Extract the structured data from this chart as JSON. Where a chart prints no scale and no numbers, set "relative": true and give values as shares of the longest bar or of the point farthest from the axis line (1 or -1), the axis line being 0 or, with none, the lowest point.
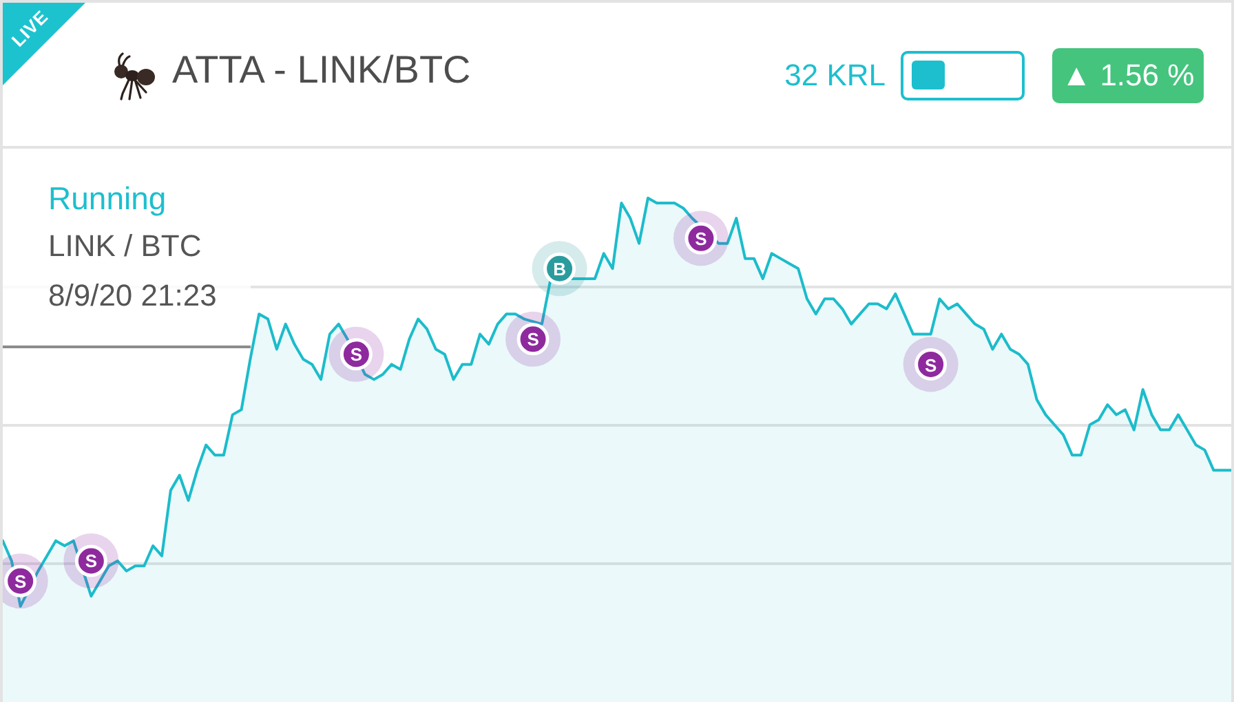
{
  "chart_data": {
    "type": "area",
    "title": "ATTA - LINK/BTC",
    "relative": true,
    "grid": "y",
    "annotations": [
      "LIVE",
      "32 KRL",
      "▲ 1.56 %",
      "Running",
      "LINK / BTC",
      "8/9/20 21:23",
      "S",
      "S",
      "S",
      "S",
      "B",
      "S",
      "S"
    ],
    "categories": [
      null,
      null,
      null,
      null,
      null,
      null,
      null,
      null,
      null,
      null,
      null,
      null,
      null,
      null,
      null,
      null,
      null,
      null,
      null,
      null,
      null,
      null,
      null,
      null,
      null,
      null,
      null,
      null,
      null,
      null,
      null,
      null,
      null,
      null,
      null,
      null,
      null,
      null,
      null,
      null,
      null,
      null,
      null,
      null,
      null,
      null,
      null,
      null,
      null,
      null,
      null,
      null,
      null,
      null,
      null,
      null,
      null,
      null,
      null,
      null,
      null,
      null,
      null,
      null,
      null,
      null,
      null,
      null,
      null,
      null,
      null,
      null,
      null,
      null,
      null,
      null,
      null,
      null,
      null,
      null,
      null,
      null,
      null,
      null,
      null,
      null,
      null,
      null,
      null,
      null,
      null,
      null,
      null,
      null,
      null,
      null,
      null,
      null,
      null,
      null,
      null,
      null,
      null,
      null,
      null,
      null,
      null,
      null,
      null,
      null,
      null,
      null,
      null,
      null,
      null,
      null,
      null,
      null,
      null,
      null,
      null,
      null,
      null,
      null,
      null,
      null,
      null,
      null,
      null,
      null,
      null,
      null,
      null,
      null,
      null,
      null,
      null,
      null,
      null,
      null
    ],
    "series": [
      {
        "color": "#1cbccb",
        "values": [
          0.32,
          0.28,
          0.19,
          null,
          0.26,
          0.29,
          0.32,
          0.31,
          0.32,
          null,
          0.21,
          0.24,
          0.27,
          0.28,
          0.26,
          0.27,
          0.27,
          0.31,
          0.29,
          0.42,
          0.45,
          0.4,
          0.46,
          0.51,
          0.49,
          0.49,
          0.57,
          0.58,
          0.68,
          0.77,
          0.76,
          0.7,
          0.75,
          0.71,
          0.68,
          0.67,
          0.64,
          0.73,
          0.75,
          0.72,
          null,
          0.65,
          0.64,
          0.65,
          0.67,
          0.66,
          0.72,
          0.76,
          0.74,
          0.7,
          0.69,
          0.64,
          0.67,
          0.67,
          0.73,
          0.71,
          0.75,
          0.77,
          0.77,
          0.76,
          null,
          0.75,
          0.84,
          null,
          null,
          0.84,
          0.84,
          0.84,
          0.89,
          0.86,
          0.99,
          0.96,
          0.91,
          1,
          0.99,
          0.99,
          0.99,
          0.98,
          0.96,
          null,
          null,
          0.91,
          0.91,
          0.96,
          0.88,
          0.88,
          0.84,
          0.89,
          0.88,
          0.87,
          0.86,
          0.8,
          0.77,
          0.8,
          0.8,
          0.78,
          0.75,
          0.77,
          0.79,
          0.79,
          0.78,
          0.81,
          0.77,
          0.73,
          0.73,
          0.73,
          0.8,
          0.78,
          0.79,
          0.77,
          0.75,
          0.74,
          0.7,
          0.73,
          0.7,
          0.69,
          0.67,
          0.6,
          0.57,
          0.55,
          0.53,
          0.49,
          0.49,
          0.55,
          0.56,
          0.59,
          0.57,
          0.58,
          0.54,
          0.62,
          0.57,
          0.54,
          0.54,
          0.57,
          0.54,
          0.51,
          0.5,
          0.46,
          0.46,
          0.46
        ]
      },
      {
        "type": "line",
        "marker": "circle",
        "color": "#8e2a9e",
        "values": [
          null,
          null,
          0.24,
          null,
          null,
          null,
          null,
          null,
          null,
          null,
          null,
          null,
          null,
          null,
          null,
          null,
          null,
          null,
          null,
          null,
          null,
          null,
          null,
          null,
          null,
          null,
          null,
          null,
          null,
          null,
          null,
          null,
          null,
          null,
          null,
          null,
          null,
          null,
          null,
          null,
          null,
          null,
          null,
          null,
          null,
          null,
          null,
          null,
          null,
          null,
          null,
          null,
          null,
          null,
          null,
          null,
          null,
          null,
          null,
          null,
          null,
          null,
          null,
          null,
          null,
          null,
          null,
          null,
          null,
          null,
          null,
          null,
          null,
          null,
          null,
          null,
          null,
          null,
          null,
          null,
          null,
          null,
          null,
          null,
          null,
          null,
          null,
          null,
          null,
          null,
          null,
          null,
          null,
          null,
          null,
          null,
          null,
          null,
          null,
          null,
          null,
          null,
          null,
          null,
          null,
          null,
          null,
          null,
          null,
          null,
          null,
          null,
          null,
          null,
          null,
          null,
          null,
          null,
          null,
          null,
          null,
          null,
          null,
          null,
          null,
          null,
          null,
          null,
          null,
          null,
          null,
          null,
          null,
          null,
          null,
          null,
          null,
          null,
          null,
          null
        ]
      },
      {
        "type": "line",
        "marker": "circle",
        "color": "#8e2a9e",
        "values": [
          null,
          null,
          null,
          null,
          null,
          null,
          null,
          null,
          null,
          null,
          0.28,
          null,
          null,
          null,
          null,
          null,
          null,
          null,
          null,
          null,
          null,
          null,
          null,
          null,
          null,
          null,
          null,
          null,
          null,
          null,
          null,
          null,
          null,
          null,
          null,
          null,
          null,
          null,
          null,
          null,
          null,
          null,
          null,
          null,
          null,
          null,
          null,
          null,
          null,
          null,
          null,
          null,
          null,
          null,
          null,
          null,
          null,
          null,
          null,
          null,
          null,
          null,
          null,
          null,
          null,
          null,
          null,
          null,
          null,
          null,
          null,
          null,
          null,
          null,
          null,
          null,
          null,
          null,
          null,
          null,
          null,
          null,
          null,
          null,
          null,
          null,
          null,
          null,
          null,
          null,
          null,
          null,
          null,
          null,
          null,
          null,
          null,
          null,
          null,
          null,
          null,
          null,
          null,
          null,
          null,
          null,
          null,
          null,
          null,
          null,
          null,
          null,
          null,
          null,
          null,
          null,
          null,
          null,
          null,
          null,
          null,
          null,
          null,
          null,
          null,
          null,
          null,
          null,
          null,
          null,
          null,
          null,
          null,
          null,
          null,
          null,
          null,
          null,
          null,
          null
        ]
      },
      {
        "type": "line",
        "marker": "circle",
        "color": "#8e2a9e",
        "values": [
          null,
          null,
          null,
          null,
          null,
          null,
          null,
          null,
          null,
          null,
          null,
          null,
          null,
          null,
          null,
          null,
          null,
          null,
          null,
          null,
          null,
          null,
          null,
          null,
          null,
          null,
          null,
          null,
          null,
          null,
          null,
          null,
          null,
          null,
          null,
          null,
          null,
          null,
          null,
          null,
          0.69,
          null,
          null,
          null,
          null,
          null,
          null,
          null,
          null,
          null,
          null,
          null,
          null,
          null,
          null,
          null,
          null,
          null,
          null,
          null,
          null,
          null,
          null,
          null,
          null,
          null,
          null,
          null,
          null,
          null,
          null,
          null,
          null,
          null,
          null,
          null,
          null,
          null,
          null,
          null,
          null,
          null,
          null,
          null,
          null,
          null,
          null,
          null,
          null,
          null,
          null,
          null,
          null,
          null,
          null,
          null,
          null,
          null,
          null,
          null,
          null,
          null,
          null,
          null,
          null,
          null,
          null,
          null,
          null,
          null,
          null,
          null,
          null,
          null,
          null,
          null,
          null,
          null,
          null,
          null,
          null,
          null,
          null,
          null,
          null,
          null,
          null,
          null,
          null,
          null,
          null,
          null,
          null,
          null,
          null,
          null,
          null,
          null,
          null,
          null
        ]
      },
      {
        "type": "line",
        "marker": "circle",
        "color": "#8e2a9e",
        "values": [
          null,
          null,
          null,
          null,
          null,
          null,
          null,
          null,
          null,
          null,
          null,
          null,
          null,
          null,
          null,
          null,
          null,
          null,
          null,
          null,
          null,
          null,
          null,
          null,
          null,
          null,
          null,
          null,
          null,
          null,
          null,
          null,
          null,
          null,
          null,
          null,
          null,
          null,
          null,
          null,
          null,
          null,
          null,
          null,
          null,
          null,
          null,
          null,
          null,
          null,
          null,
          null,
          null,
          null,
          null,
          null,
          null,
          null,
          null,
          null,
          0.72,
          null,
          null,
          null,
          null,
          null,
          null,
          null,
          null,
          null,
          null,
          null,
          null,
          null,
          null,
          null,
          null,
          null,
          null,
          null,
          null,
          null,
          null,
          null,
          null,
          null,
          null,
          null,
          null,
          null,
          null,
          null,
          null,
          null,
          null,
          null,
          null,
          null,
          null,
          null,
          null,
          null,
          null,
          null,
          null,
          null,
          null,
          null,
          null,
          null,
          null,
          null,
          null,
          null,
          null,
          null,
          null,
          null,
          null,
          null,
          null,
          null,
          null,
          null,
          null,
          null,
          null,
          null,
          null,
          null,
          null,
          null,
          null,
          null,
          null,
          null,
          null,
          null,
          null,
          null
        ]
      },
      {
        "type": "line",
        "marker": "circle",
        "color": "#2b9c9e",
        "values": [
          null,
          null,
          null,
          null,
          null,
          null,
          null,
          null,
          null,
          null,
          null,
          null,
          null,
          null,
          null,
          null,
          null,
          null,
          null,
          null,
          null,
          null,
          null,
          null,
          null,
          null,
          null,
          null,
          null,
          null,
          null,
          null,
          null,
          null,
          null,
          null,
          null,
          null,
          null,
          null,
          null,
          null,
          null,
          null,
          null,
          null,
          null,
          null,
          null,
          null,
          null,
          null,
          null,
          null,
          null,
          null,
          null,
          null,
          null,
          null,
          null,
          null,
          null,
          0.86,
          null,
          null,
          null,
          null,
          null,
          null,
          null,
          null,
          null,
          null,
          null,
          null,
          null,
          null,
          null,
          null,
          null,
          null,
          null,
          null,
          null,
          null,
          null,
          null,
          null,
          null,
          null,
          null,
          null,
          null,
          null,
          null,
          null,
          null,
          null,
          null,
          null,
          null,
          null,
          null,
          null,
          null,
          null,
          null,
          null,
          null,
          null,
          null,
          null,
          null,
          null,
          null,
          null,
          null,
          null,
          null,
          null,
          null,
          null,
          null,
          null,
          null,
          null,
          null,
          null,
          null,
          null,
          null,
          null,
          null,
          null,
          null,
          null,
          null,
          null,
          null
        ]
      },
      {
        "type": "line",
        "marker": "circle",
        "color": "#8e2a9e",
        "values": [
          null,
          null,
          null,
          null,
          null,
          null,
          null,
          null,
          null,
          null,
          null,
          null,
          null,
          null,
          null,
          null,
          null,
          null,
          null,
          null,
          null,
          null,
          null,
          null,
          null,
          null,
          null,
          null,
          null,
          null,
          null,
          null,
          null,
          null,
          null,
          null,
          null,
          null,
          null,
          null,
          null,
          null,
          null,
          null,
          null,
          null,
          null,
          null,
          null,
          null,
          null,
          null,
          null,
          null,
          null,
          null,
          null,
          null,
          null,
          null,
          null,
          null,
          null,
          null,
          null,
          null,
          null,
          null,
          null,
          null,
          null,
          null,
          null,
          null,
          null,
          null,
          null,
          null,
          null,
          0.92,
          null,
          null,
          null,
          null,
          null,
          null,
          null,
          null,
          null,
          null,
          null,
          null,
          null,
          null,
          null,
          null,
          null,
          null,
          null,
          null,
          null,
          null,
          null,
          null,
          null,
          null,
          null,
          null,
          null,
          null,
          null,
          null,
          null,
          null,
          null,
          null,
          null,
          null,
          null,
          null,
          null,
          null,
          null,
          null,
          null,
          null,
          null,
          null,
          null,
          null,
          null,
          null,
          null,
          null,
          null,
          null,
          null,
          null,
          null,
          null
        ]
      },
      {
        "type": "line",
        "marker": "circle",
        "color": "#8e2a9e",
        "values": [
          null,
          null,
          null,
          null,
          null,
          null,
          null,
          null,
          null,
          null,
          null,
          null,
          null,
          null,
          null,
          null,
          null,
          null,
          null,
          null,
          null,
          null,
          null,
          null,
          null,
          null,
          null,
          null,
          null,
          null,
          null,
          null,
          null,
          null,
          null,
          null,
          null,
          null,
          null,
          null,
          null,
          null,
          null,
          null,
          null,
          null,
          null,
          null,
          null,
          null,
          null,
          null,
          null,
          null,
          null,
          null,
          null,
          null,
          null,
          null,
          null,
          null,
          null,
          null,
          null,
          null,
          null,
          null,
          null,
          null,
          null,
          null,
          null,
          null,
          null,
          null,
          null,
          null,
          null,
          null,
          null,
          null,
          null,
          null,
          null,
          null,
          null,
          null,
          null,
          null,
          null,
          null,
          null,
          null,
          null,
          null,
          null,
          null,
          null,
          null,
          null,
          null,
          null,
          null,
          null,
          0.67,
          null,
          null,
          null,
          null,
          null,
          null,
          null,
          null,
          null,
          null,
          null,
          null,
          null,
          null,
          null,
          null,
          null,
          null,
          null,
          null,
          null,
          null,
          null,
          null,
          null,
          null,
          null,
          null,
          null,
          null,
          null,
          null,
          null,
          null
        ]
      }
    ]
  }
}
